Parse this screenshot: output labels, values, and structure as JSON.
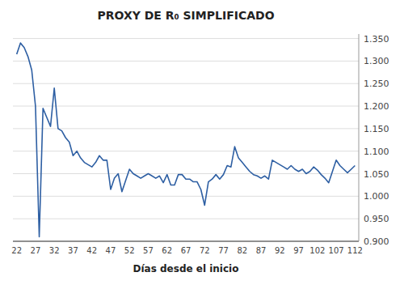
{
  "chart_data": {
    "type": "line",
    "title": "PROXY DE R₀ SIMPLIFICADO",
    "xlabel": "Días desde el inicio",
    "color": "#2E5FA3",
    "x": [
      22,
      23,
      24,
      25,
      26,
      27,
      28,
      29,
      30,
      31,
      32,
      33,
      34,
      35,
      36,
      37,
      38,
      39,
      40,
      41,
      42,
      43,
      44,
      45,
      46,
      47,
      48,
      49,
      50,
      51,
      52,
      53,
      54,
      55,
      56,
      57,
      58,
      59,
      60,
      61,
      62,
      63,
      64,
      65,
      66,
      67,
      68,
      69,
      70,
      71,
      72,
      73,
      74,
      75,
      76,
      77,
      78,
      79,
      80,
      81,
      82,
      83,
      84,
      85,
      86,
      87,
      88,
      89,
      90,
      91,
      92,
      93,
      94,
      95,
      96,
      97,
      98,
      99,
      100,
      101,
      102,
      103,
      104,
      105,
      106,
      107,
      108,
      109,
      110,
      111,
      112
    ],
    "values": [
      1.315,
      1.34,
      1.33,
      1.31,
      1.28,
      1.2,
      0.91,
      1.195,
      1.175,
      1.155,
      1.24,
      1.15,
      1.145,
      1.13,
      1.12,
      1.09,
      1.1,
      1.085,
      1.075,
      1.07,
      1.065,
      1.075,
      1.09,
      1.08,
      1.08,
      1.015,
      1.04,
      1.05,
      1.01,
      1.035,
      1.06,
      1.05,
      1.045,
      1.04,
      1.045,
      1.05,
      1.045,
      1.04,
      1.045,
      1.03,
      1.048,
      1.025,
      1.025,
      1.048,
      1.048,
      1.038,
      1.038,
      1.032,
      1.032,
      1.015,
      0.98,
      1.032,
      1.038,
      1.048,
      1.038,
      1.048,
      1.068,
      1.065,
      1.11,
      1.085,
      1.075,
      1.065,
      1.055,
      1.048,
      1.045,
      1.04,
      1.045,
      1.038,
      1.08,
      1.075,
      1.07,
      1.065,
      1.06,
      1.068,
      1.06,
      1.055,
      1.06,
      1.05,
      1.055,
      1.065,
      1.058,
      1.048,
      1.04,
      1.03,
      1.055,
      1.08,
      1.068,
      1.06,
      1.052,
      1.06,
      1.068
    ],
    "xlim": [
      21,
      113
    ],
    "xticks": [
      22,
      27,
      32,
      37,
      42,
      47,
      52,
      57,
      62,
      67,
      72,
      77,
      82,
      87,
      92,
      97,
      102,
      107,
      112
    ],
    "ylim": [
      0.9,
      1.36
    ],
    "yticks": [
      {
        "value": 0.9,
        "label": "0.900"
      },
      {
        "value": 0.95,
        "label": "0.950"
      },
      {
        "value": 1.0,
        "label": "1.000"
      },
      {
        "value": 1.05,
        "label": "1.050"
      },
      {
        "value": 1.1,
        "label": "1.100"
      },
      {
        "value": 1.15,
        "label": "1.150"
      },
      {
        "value": 1.2,
        "label": "1.200"
      },
      {
        "value": 1.25,
        "label": "1.250"
      },
      {
        "value": 1.3,
        "label": "1.300"
      },
      {
        "value": 1.35,
        "label": "1.350"
      }
    ],
    "grid": true
  }
}
